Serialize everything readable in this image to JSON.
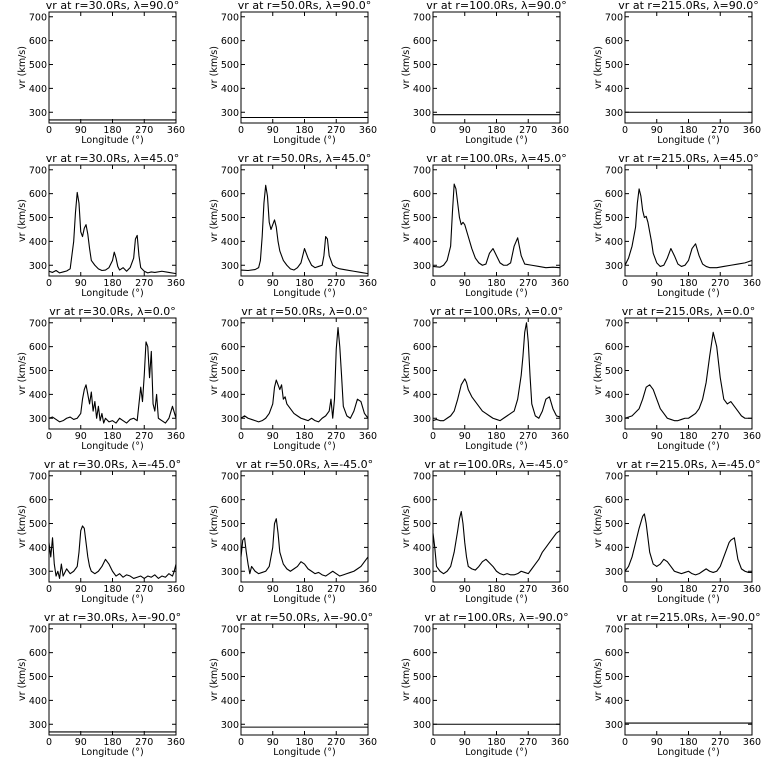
{
  "chart_data": {
    "type": "line",
    "xlabel": "Longitude (°)",
    "ylabel": "vr (km/s)",
    "xlim": [
      0,
      360
    ],
    "ylim": [
      255,
      720
    ],
    "xticks": [
      0,
      90,
      180,
      270,
      360
    ],
    "yticks": [
      300,
      400,
      500,
      600,
      700
    ],
    "radii": [
      "30.0",
      "50.0",
      "100.0",
      "215.0"
    ],
    "latitudes": [
      "90.0",
      "45.0",
      "0.0",
      "-45.0",
      "-90.0"
    ],
    "panels": [
      {
        "title": "vr at r=30.0Rs, λ=90.0°",
        "x": [
          0,
          360
        ],
        "y": [
          268,
          268
        ]
      },
      {
        "title": "vr at r=50.0Rs, λ=90.0°",
        "x": [
          0,
          360
        ],
        "y": [
          278,
          278
        ]
      },
      {
        "title": "vr at r=100.0Rs, λ=90.0°",
        "x": [
          0,
          360
        ],
        "y": [
          290,
          290
        ]
      },
      {
        "title": "vr at r=215.0Rs, λ=90.0°",
        "x": [
          0,
          360
        ],
        "y": [
          300,
          300
        ]
      },
      {
        "title": "vr at r=30.0Rs, λ=45.0°",
        "x": [
          0,
          10,
          20,
          30,
          40,
          50,
          60,
          70,
          75,
          80,
          85,
          90,
          95,
          100,
          105,
          110,
          115,
          120,
          130,
          140,
          150,
          160,
          170,
          180,
          185,
          190,
          195,
          200,
          210,
          220,
          230,
          240,
          245,
          250,
          255,
          260,
          270,
          280,
          290,
          300,
          320,
          340,
          360
        ],
        "y": [
          275,
          270,
          278,
          268,
          272,
          276,
          285,
          400,
          520,
          605,
          560,
          440,
          420,
          455,
          470,
          430,
          370,
          320,
          300,
          285,
          278,
          280,
          290,
          320,
          355,
          330,
          295,
          280,
          290,
          275,
          290,
          330,
          410,
          425,
          340,
          290,
          275,
          268,
          272,
          270,
          275,
          270,
          265
        ]
      },
      {
        "title": "vr at r=50.0Rs, λ=45.0°",
        "x": [
          0,
          20,
          40,
          50,
          55,
          60,
          65,
          70,
          75,
          80,
          85,
          90,
          95,
          100,
          105,
          110,
          120,
          130,
          140,
          150,
          160,
          170,
          180,
          190,
          200,
          210,
          220,
          230,
          235,
          240,
          245,
          250,
          260,
          270,
          280,
          300,
          320,
          340,
          360
        ],
        "y": [
          280,
          278,
          282,
          290,
          320,
          420,
          560,
          635,
          590,
          480,
          450,
          470,
          490,
          460,
          400,
          360,
          320,
          300,
          285,
          280,
          290,
          310,
          370,
          330,
          300,
          290,
          295,
          300,
          340,
          420,
          410,
          340,
          300,
          290,
          285,
          280,
          275,
          270,
          265
        ]
      },
      {
        "title": "vr at r=100.0Rs, λ=45.0°",
        "x": [
          0,
          20,
          30,
          40,
          50,
          55,
          60,
          65,
          70,
          75,
          80,
          85,
          90,
          100,
          110,
          120,
          130,
          140,
          150,
          160,
          170,
          180,
          190,
          200,
          210,
          220,
          230,
          240,
          250,
          260,
          280,
          300,
          320,
          340,
          360
        ],
        "y": [
          295,
          292,
          300,
          320,
          380,
          520,
          640,
          620,
          560,
          500,
          470,
          480,
          470,
          420,
          370,
          330,
          310,
          300,
          305,
          350,
          370,
          340,
          310,
          300,
          300,
          310,
          380,
          415,
          340,
          305,
          300,
          295,
          290,
          292,
          290
        ]
      },
      {
        "title": "vr at r=215.0Rs, λ=45.0°",
        "x": [
          0,
          10,
          20,
          30,
          35,
          40,
          45,
          50,
          55,
          60,
          65,
          70,
          75,
          80,
          90,
          100,
          110,
          120,
          130,
          140,
          150,
          160,
          170,
          180,
          190,
          200,
          210,
          220,
          230,
          240,
          260,
          280,
          300,
          320,
          340,
          360
        ],
        "y": [
          300,
          330,
          380,
          460,
          560,
          620,
          590,
          530,
          500,
          505,
          480,
          440,
          400,
          350,
          310,
          295,
          300,
          330,
          370,
          340,
          305,
          295,
          300,
          320,
          370,
          390,
          340,
          305,
          295,
          290,
          290,
          295,
          300,
          305,
          310,
          320
        ]
      },
      {
        "title": "vr at r=30.0Rs, λ=0.0°",
        "x": [
          0,
          10,
          20,
          30,
          40,
          50,
          60,
          70,
          80,
          90,
          95,
          100,
          105,
          110,
          115,
          120,
          125,
          130,
          135,
          140,
          145,
          150,
          155,
          160,
          170,
          180,
          190,
          200,
          210,
          220,
          230,
          240,
          250,
          260,
          265,
          270,
          275,
          280,
          285,
          290,
          295,
          300,
          305,
          310,
          320,
          330,
          340,
          350,
          360
        ],
        "y": [
          300,
          305,
          295,
          285,
          290,
          300,
          305,
          295,
          300,
          320,
          380,
          420,
          440,
          400,
          360,
          410,
          330,
          370,
          300,
          350,
          290,
          320,
          280,
          300,
          285,
          290,
          280,
          300,
          290,
          280,
          295,
          300,
          290,
          430,
          370,
          480,
          620,
          600,
          470,
          580,
          360,
          330,
          400,
          300,
          290,
          280,
          300,
          350,
          300
        ]
      },
      {
        "title": "vr at r=50.0Rs, λ=0.0°",
        "x": [
          0,
          10,
          20,
          30,
          40,
          50,
          60,
          70,
          80,
          90,
          95,
          100,
          110,
          115,
          120,
          125,
          130,
          140,
          150,
          160,
          170,
          180,
          190,
          200,
          210,
          220,
          230,
          240,
          250,
          255,
          260,
          265,
          270,
          275,
          280,
          285,
          290,
          300,
          310,
          320,
          330,
          340,
          350,
          360
        ],
        "y": [
          300,
          310,
          300,
          295,
          290,
          285,
          290,
          300,
          320,
          360,
          430,
          460,
          420,
          440,
          380,
          390,
          360,
          340,
          320,
          310,
          300,
          295,
          290,
          300,
          290,
          285,
          300,
          310,
          330,
          380,
          300,
          380,
          590,
          680,
          600,
          480,
          350,
          310,
          300,
          330,
          380,
          370,
          320,
          300
        ]
      },
      {
        "title": "vr at r=100.0Rs, λ=0.0°",
        "x": [
          0,
          10,
          20,
          30,
          40,
          50,
          60,
          70,
          80,
          90,
          95,
          100,
          110,
          120,
          130,
          140,
          150,
          160,
          170,
          180,
          190,
          200,
          210,
          220,
          230,
          240,
          250,
          255,
          260,
          265,
          270,
          275,
          280,
          290,
          300,
          310,
          320,
          330,
          340,
          350,
          360
        ],
        "y": [
          290,
          295,
          290,
          290,
          300,
          310,
          330,
          380,
          440,
          465,
          450,
          420,
          390,
          370,
          350,
          330,
          320,
          310,
          300,
          295,
          290,
          300,
          310,
          320,
          330,
          380,
          480,
          560,
          660,
          700,
          620,
          480,
          360,
          310,
          300,
          330,
          380,
          390,
          340,
          310,
          305
        ]
      },
      {
        "title": "vr at r=215.0Rs, λ=0.0°",
        "x": [
          0,
          20,
          40,
          50,
          60,
          70,
          80,
          90,
          100,
          110,
          120,
          130,
          140,
          150,
          160,
          170,
          180,
          190,
          200,
          210,
          220,
          230,
          240,
          250,
          260,
          270,
          280,
          290,
          300,
          310,
          320,
          330,
          340,
          350,
          360
        ],
        "y": [
          300,
          310,
          340,
          380,
          430,
          440,
          420,
          380,
          340,
          320,
          300,
          295,
          290,
          290,
          295,
          300,
          300,
          310,
          320,
          340,
          380,
          450,
          560,
          660,
          600,
          470,
          380,
          360,
          370,
          350,
          330,
          310,
          300,
          300,
          300
        ]
      },
      {
        "title": "vr at r=30.0Rs, λ=-45.0°",
        "x": [
          0,
          5,
          10,
          15,
          20,
          25,
          30,
          35,
          40,
          50,
          60,
          70,
          80,
          85,
          90,
          95,
          100,
          105,
          110,
          115,
          120,
          130,
          140,
          150,
          160,
          170,
          180,
          190,
          200,
          210,
          220,
          230,
          240,
          250,
          260,
          270,
          280,
          290,
          300,
          310,
          320,
          330,
          340,
          350,
          355,
          360
        ],
        "y": [
          420,
          360,
          440,
          330,
          280,
          300,
          270,
          330,
          280,
          310,
          290,
          300,
          320,
          380,
          470,
          490,
          480,
          420,
          360,
          320,
          300,
          290,
          300,
          320,
          350,
          330,
          300,
          280,
          290,
          275,
          285,
          280,
          270,
          275,
          280,
          270,
          280,
          275,
          285,
          270,
          280,
          275,
          290,
          280,
          300,
          330
        ]
      },
      {
        "title": "vr at r=50.0Rs, λ=-45.0°",
        "x": [
          0,
          5,
          10,
          15,
          20,
          25,
          30,
          40,
          50,
          60,
          70,
          80,
          90,
          95,
          100,
          105,
          110,
          120,
          130,
          140,
          150,
          160,
          170,
          180,
          190,
          200,
          210,
          220,
          230,
          240,
          250,
          260,
          270,
          280,
          290,
          300,
          310,
          320,
          330,
          340,
          350,
          360
        ],
        "y": [
          360,
          430,
          440,
          380,
          330,
          290,
          320,
          300,
          290,
          295,
          300,
          320,
          400,
          500,
          520,
          460,
          380,
          330,
          310,
          300,
          310,
          320,
          340,
          330,
          310,
          300,
          290,
          295,
          285,
          280,
          290,
          300,
          290,
          280,
          285,
          290,
          295,
          300,
          310,
          320,
          340,
          360
        ]
      },
      {
        "title": "vr at r=100.0Rs, λ=-45.0°",
        "x": [
          0,
          5,
          10,
          20,
          30,
          40,
          50,
          60,
          70,
          75,
          80,
          85,
          90,
          95,
          100,
          110,
          120,
          130,
          140,
          150,
          160,
          170,
          180,
          190,
          200,
          210,
          220,
          230,
          240,
          250,
          260,
          270,
          280,
          290,
          300,
          310,
          320,
          330,
          340,
          350,
          360
        ],
        "y": [
          460,
          400,
          320,
          300,
          290,
          300,
          320,
          380,
          470,
          520,
          550,
          500,
          420,
          360,
          320,
          310,
          305,
          320,
          340,
          350,
          335,
          320,
          300,
          290,
          285,
          290,
          285,
          285,
          290,
          300,
          295,
          290,
          310,
          330,
          350,
          380,
          400,
          420,
          440,
          460,
          470
        ]
      },
      {
        "title": "vr at r=215.0Rs, λ=-45.0°",
        "x": [
          0,
          10,
          20,
          30,
          40,
          50,
          55,
          60,
          65,
          70,
          80,
          90,
          100,
          110,
          120,
          130,
          140,
          150,
          160,
          170,
          180,
          190,
          200,
          210,
          220,
          230,
          240,
          250,
          260,
          270,
          280,
          290,
          295,
          300,
          310,
          320,
          330,
          340,
          350,
          360
        ],
        "y": [
          300,
          320,
          360,
          420,
          480,
          530,
          540,
          500,
          440,
          380,
          330,
          320,
          330,
          350,
          340,
          320,
          300,
          295,
          290,
          295,
          300,
          290,
          285,
          290,
          300,
          310,
          300,
          295,
          300,
          320,
          360,
          400,
          420,
          430,
          440,
          350,
          310,
          300,
          295,
          295
        ]
      },
      {
        "title": "vr at r=30.0Rs, λ=-90.0°",
        "x": [
          0,
          360
        ],
        "y": [
          268,
          268
        ]
      },
      {
        "title": "vr at r=50.0Rs, λ=-90.0°",
        "x": [
          0,
          360
        ],
        "y": [
          288,
          288
        ]
      },
      {
        "title": "vr at r=100.0Rs, λ=-90.0°",
        "x": [
          0,
          360
        ],
        "y": [
          300,
          300
        ]
      },
      {
        "title": "vr at r=215.0Rs, λ=-90.0°",
        "x": [
          0,
          360
        ],
        "y": [
          305,
          305
        ]
      }
    ]
  }
}
